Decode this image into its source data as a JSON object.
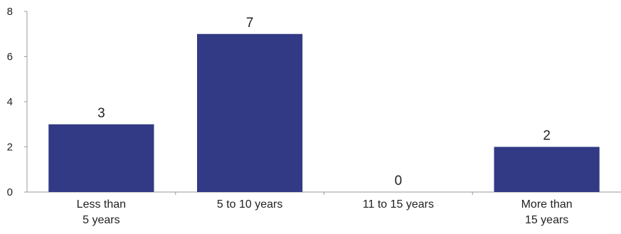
{
  "chart_data": {
    "type": "bar",
    "title": "",
    "xlabel": "",
    "ylabel": "",
    "categories": [
      [
        "Less than",
        "5 years"
      ],
      [
        "5 to 10 years"
      ],
      [
        "11 to 15 years"
      ],
      [
        "More than",
        "15 years"
      ]
    ],
    "values": [
      3,
      7,
      0,
      2
    ],
    "data_labels": [
      "3",
      "7",
      "0",
      "2"
    ],
    "ylim": [
      0,
      8
    ],
    "yticks": [
      0,
      2,
      4,
      6,
      8
    ],
    "grid": false,
    "legend": "none",
    "bar_color": "#323a85",
    "axis_color": "#9a9a9a"
  }
}
